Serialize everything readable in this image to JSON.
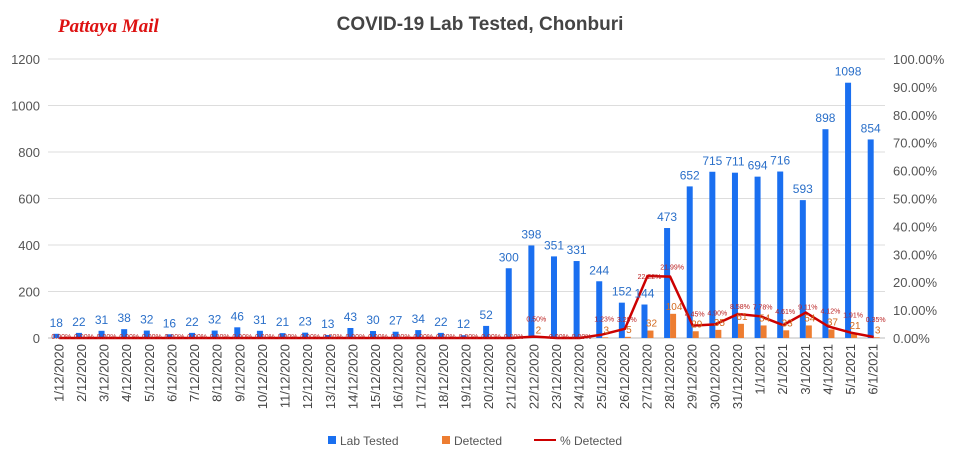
{
  "brand": "Pattaya Mail",
  "chart_data": {
    "type": "bar",
    "title": "COVID-19 Lab Tested, Chonburi",
    "categories": [
      "1/12/2020",
      "2/12/2020",
      "3/12/2020",
      "4/12/2020",
      "5/12/2020",
      "6/12/2020",
      "7/12/2020",
      "8/12/2020",
      "9/12/2020",
      "10/12/2020",
      "11/12/2020",
      "12/12/2020",
      "13/12/2020",
      "14/12/2020",
      "15/12/2020",
      "16/12/2020",
      "17/12/2020",
      "18/12/2020",
      "19/12/2020",
      "20/12/2020",
      "21/12/2020",
      "22/12/2020",
      "23/12/2020",
      "24/12/2020",
      "25/12/2020",
      "26/12/2020",
      "27/12/2020",
      "28/12/2020",
      "29/12/2020",
      "30/12/2020",
      "31/12/2020",
      "1/1/2021",
      "2/1/2021",
      "3/1/2021",
      "4/1/2021",
      "5/1/2021",
      "6/1/2021"
    ],
    "series": [
      {
        "name": "Lab Tested",
        "type": "bar",
        "axis": "left",
        "color": "#1a6ff0",
        "values": [
          18,
          22,
          31,
          38,
          32,
          16,
          22,
          32,
          46,
          31,
          21,
          23,
          13,
          43,
          30,
          27,
          34,
          22,
          12,
          52,
          300,
          398,
          351,
          331,
          244,
          152,
          144,
          473,
          652,
          715,
          711,
          694,
          716,
          593,
          898,
          1098,
          854
        ]
      },
      {
        "name": "Detected",
        "type": "bar",
        "axis": "left",
        "color": "#ed7d31",
        "values": [
          0,
          0,
          0,
          0,
          0,
          0,
          0,
          0,
          0,
          0,
          0,
          0,
          0,
          0,
          0,
          0,
          0,
          0,
          0,
          0,
          0,
          2,
          0,
          0,
          3,
          5,
          32,
          104,
          29,
          35,
          61,
          54,
          33,
          54,
          37,
          21,
          3
        ]
      },
      {
        "name": "% Detected",
        "type": "line",
        "axis": "right",
        "color": "#cc0000",
        "values": [
          0,
          0,
          0,
          0,
          0,
          0,
          0,
          0,
          0,
          0,
          0,
          0,
          0,
          0,
          0,
          0,
          0,
          0,
          0,
          0,
          0,
          0.5,
          0,
          0,
          1.23,
          3.29,
          22.22,
          21.99,
          4.45,
          4.9,
          8.58,
          7.78,
          4.61,
          9.11,
          4.12,
          1.91,
          0.35
        ]
      }
    ],
    "ylim": [
      0,
      1200
    ],
    "yticks": [
      "0",
      "200",
      "400",
      "600",
      "800",
      "1000",
      "1200"
    ],
    "y2lim": [
      0,
      100
    ],
    "y2ticks": [
      "0.00%",
      "10.00%",
      "20.00%",
      "30.00%",
      "40.00%",
      "50.00%",
      "60.00%",
      "70.00%",
      "80.00%",
      "90.00%",
      "100.00%"
    ],
    "grid": true,
    "legend": "bottom"
  }
}
